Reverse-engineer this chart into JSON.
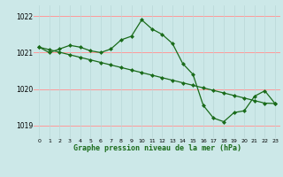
{
  "title": "Graphe pression niveau de la mer (hPa)",
  "bg_color": "#cce8e8",
  "line_color": "#1a6b1a",
  "grid_color_h": "#ff9999",
  "grid_color_v": "#b8d8d8",
  "xlim": [
    -0.5,
    23.5
  ],
  "ylim": [
    1018.65,
    1022.3
  ],
  "yticks": [
    1019,
    1020,
    1021,
    1022
  ],
  "xticks": [
    0,
    1,
    2,
    3,
    4,
    5,
    6,
    7,
    8,
    9,
    10,
    11,
    12,
    13,
    14,
    15,
    16,
    17,
    18,
    19,
    20,
    21,
    22,
    23
  ],
  "series1_x": [
    0,
    1,
    2,
    3,
    4,
    5,
    6,
    7,
    8,
    9,
    10,
    11,
    12,
    13,
    14,
    15,
    16,
    17,
    18,
    19,
    20,
    21,
    22,
    23
  ],
  "series1_y": [
    1021.15,
    1021.0,
    1021.1,
    1021.2,
    1021.15,
    1021.05,
    1021.0,
    1021.1,
    1021.35,
    1021.45,
    1021.9,
    1021.65,
    1021.5,
    1021.25,
    1020.7,
    1020.4,
    1019.55,
    1019.2,
    1019.1,
    1019.35,
    1019.4,
    1019.8,
    1019.95,
    1019.6
  ],
  "series2_x": [
    0,
    1,
    2,
    3,
    4,
    5,
    6,
    7,
    8,
    9,
    10,
    11,
    12,
    13,
    14,
    15,
    16,
    17,
    18,
    19,
    20,
    21,
    22,
    23
  ],
  "series2_y": [
    1021.15,
    1021.08,
    1021.01,
    1020.94,
    1020.87,
    1020.8,
    1020.73,
    1020.66,
    1020.59,
    1020.52,
    1020.45,
    1020.38,
    1020.31,
    1020.24,
    1020.17,
    1020.1,
    1020.03,
    1019.96,
    1019.89,
    1019.82,
    1019.75,
    1019.68,
    1019.61,
    1019.6
  ]
}
